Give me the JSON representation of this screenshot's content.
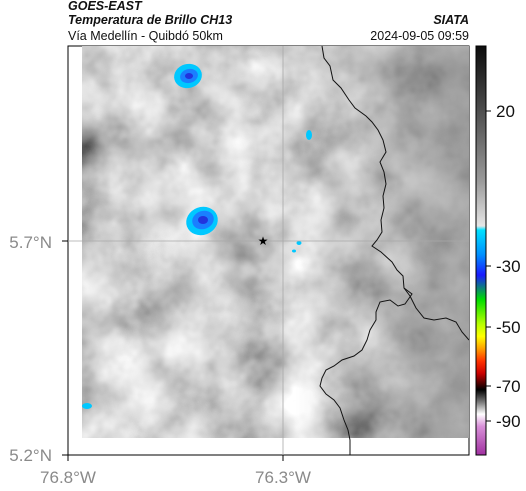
{
  "header": {
    "satellite": "GOES-EAST",
    "product": "Temperatura de Brillo CH13",
    "region": "Vía Medellín - Quibdó 50km",
    "agency": "SIATA",
    "timestamp": "2024-09-05 09:59"
  },
  "map": {
    "lat_ticks": [
      "5.7°N",
      "5.2°N"
    ],
    "lon_ticks": [
      "76.8°W",
      "76.3°W"
    ],
    "marker": "star",
    "grid_color": "#b8b8b8"
  },
  "colorbar": {
    "ticks": [
      "20",
      "-30",
      "-50",
      "-70",
      "-90"
    ],
    "palette": [
      "#e6e6e6",
      "#9a9a9a",
      "#101010",
      "#00c8ff",
      "#1a1aff",
      "#00cc00",
      "#ffff00",
      "#ff6600",
      "#cc0000",
      "#000000",
      "#ffffff",
      "#b040b0"
    ]
  }
}
